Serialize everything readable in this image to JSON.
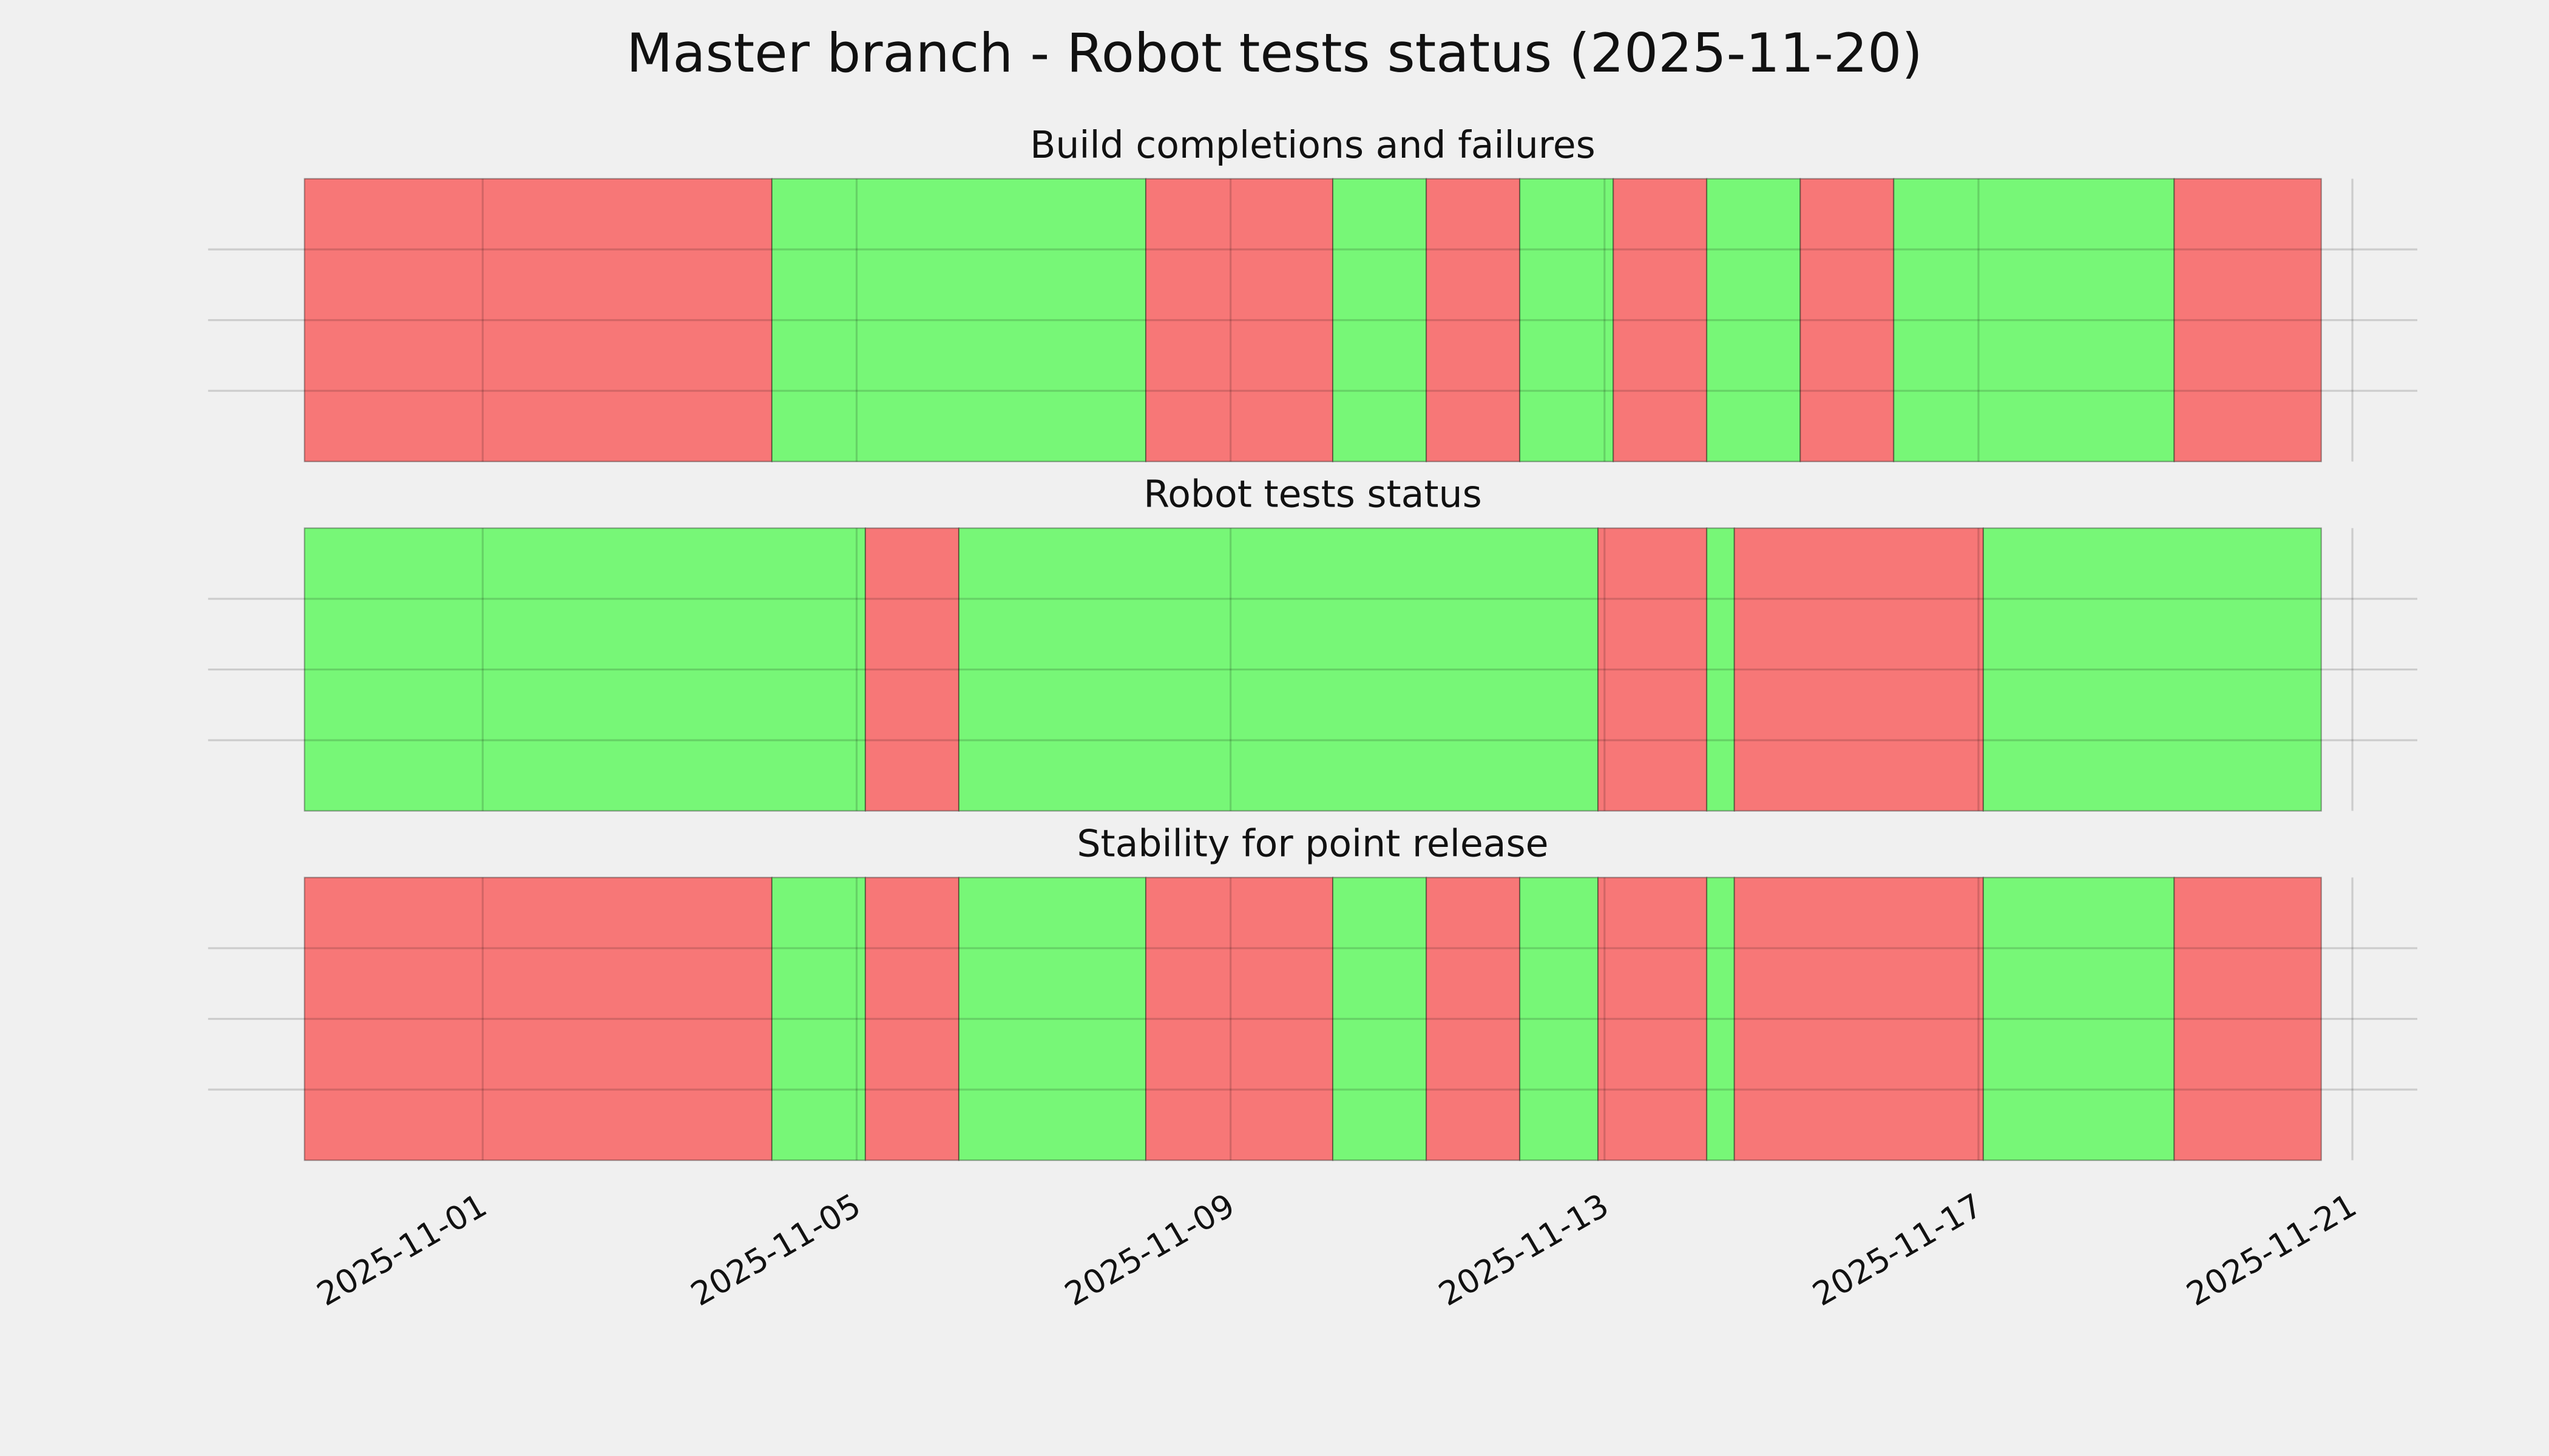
{
  "title": "Master branch - Robot tests status (2025-11-20)",
  "chart_data": [
    {
      "type": "span",
      "title": "Build completions and failures",
      "xlim": [
        "2025-10-29T01:30",
        "2025-11-21T16:40"
      ],
      "xticks": [
        "2025-11-01",
        "2025-11-05",
        "2025-11-09",
        "2025-11-13",
        "2025-11-17",
        "2025-11-21"
      ],
      "ylim": [
        0,
        1
      ],
      "yticks": [
        0.25,
        0.5,
        0.75
      ],
      "grid": true,
      "bins": [
        "2025-10-30T02:15",
        "2025-11-04T02:15",
        "2025-11-08T02:15",
        "2025-11-10T02:15",
        "2025-11-11T02:15",
        "2025-11-12T02:15",
        "2025-11-13T02:15",
        "2025-11-14T02:15",
        "2025-11-15T02:15",
        "2025-11-16T02:15",
        "2025-11-19T02:15",
        "2025-11-20T16:00"
      ],
      "colors": [
        "#f77777",
        "#77f777",
        "#f77777",
        "#77f777",
        "#f77777",
        "#77f777",
        "#f77777",
        "#77f777",
        "#f77777",
        "#77f777",
        "#f77777"
      ]
    },
    {
      "type": "span",
      "title": "Robot tests status",
      "xlim": [
        "2025-10-29T01:30",
        "2025-11-21T16:40"
      ],
      "xticks": [
        "2025-11-01",
        "2025-11-05",
        "2025-11-09",
        "2025-11-13",
        "2025-11-17",
        "2025-11-21"
      ],
      "ylim": [
        0,
        1
      ],
      "yticks": [
        0.25,
        0.5,
        0.75
      ],
      "grid": true,
      "bins": [
        "2025-10-30T02:15",
        "2025-11-05T02:15",
        "2025-11-06T02:15",
        "2025-11-12T22:20",
        "2025-11-14T02:15",
        "2025-11-14T09:20",
        "2025-11-17T01:15",
        "2025-11-20T16:00"
      ],
      "colors": [
        "#77f777",
        "#f77777",
        "#77f777",
        "#f77777",
        "#77f777",
        "#f77777",
        "#77f777"
      ]
    },
    {
      "type": "span",
      "title": "Stability for point release",
      "xlim": [
        "2025-10-29T01:30",
        "2025-11-21T16:40"
      ],
      "xticks": [
        "2025-11-01",
        "2025-11-05",
        "2025-11-09",
        "2025-11-13",
        "2025-11-17",
        "2025-11-21"
      ],
      "ylim": [
        0,
        1
      ],
      "yticks": [
        0.25,
        0.5,
        0.75
      ],
      "grid": true,
      "tick_labels": true,
      "bins": [
        "2025-10-30T02:15",
        "2025-11-04T02:15",
        "2025-11-05T02:15",
        "2025-11-06T02:15",
        "2025-11-08T02:15",
        "2025-11-10T02:15",
        "2025-11-11T02:15",
        "2025-11-12T02:15",
        "2025-11-12T22:20",
        "2025-11-14T02:15",
        "2025-11-14T09:20",
        "2025-11-17T01:15",
        "2025-11-19T02:15",
        "2025-11-20T16:00"
      ],
      "colors": [
        "#f77777",
        "#77f777",
        "#f77777",
        "#77f777",
        "#f77777",
        "#77f777",
        "#f77777",
        "#77f777",
        "#f77777",
        "#77f777",
        "#f77777",
        "#77f777",
        "#f77777"
      ]
    }
  ]
}
